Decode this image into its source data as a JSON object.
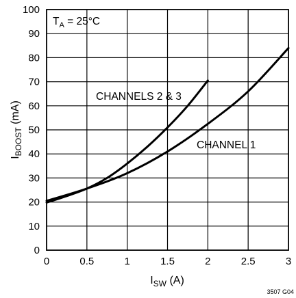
{
  "chart_data": {
    "type": "line",
    "xlabel": {
      "main": "I",
      "sub": "SW",
      "tail": " (A)"
    },
    "ylabel": {
      "main": "I",
      "sub": "BOOST",
      "tail": " (mA)"
    },
    "xlim": [
      0,
      3
    ],
    "ylim": [
      0,
      100
    ],
    "x_ticks": [
      0,
      0.5,
      1,
      1.5,
      2,
      2.5,
      3
    ],
    "x_tick_labels": [
      "0",
      "0.5",
      "1",
      "1.5",
      "2",
      "2.5",
      "3"
    ],
    "y_ticks": [
      0,
      10,
      20,
      30,
      40,
      50,
      60,
      70,
      80,
      90,
      100
    ],
    "y_tick_labels": [
      "0",
      "10",
      "20",
      "30",
      "40",
      "50",
      "60",
      "70",
      "80",
      "90",
      "100"
    ],
    "grid": true,
    "condition": {
      "main": "T",
      "sub": "A",
      "tail": " = 25°C"
    },
    "series": [
      {
        "name": "CHANNELS 2 & 3",
        "x": [
          0,
          0.25,
          0.5,
          0.75,
          1.0,
          1.25,
          1.5,
          1.75,
          2.0
        ],
        "y": [
          19.8,
          22.5,
          25.6,
          30.0,
          36.0,
          43.0,
          51.0,
          60.0,
          70.5
        ]
      },
      {
        "name": "CHANNEL 1",
        "x": [
          0,
          0.5,
          1.0,
          1.5,
          2.0,
          2.5,
          3.0
        ],
        "y": [
          20.5,
          25.6,
          32.0,
          41.0,
          52.5,
          66.0,
          84.0
        ]
      }
    ],
    "annotations": [
      "CHANNELS 2 & 3",
      "CHANNEL 1"
    ],
    "figure_id": "3507 G04"
  }
}
